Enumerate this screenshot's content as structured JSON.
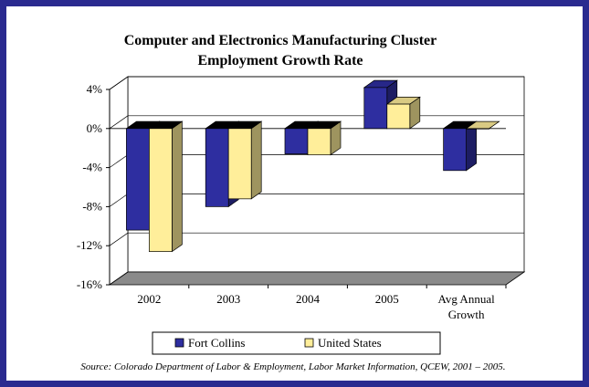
{
  "chart_data": {
    "type": "bar",
    "title_lines": [
      "Computer and Electronics Manufacturing Cluster",
      "Employment Growth Rate"
    ],
    "categories": [
      "2002",
      "2003",
      "2004",
      "2005",
      "Avg Annual Growth"
    ],
    "category_label_lines": [
      [
        "2002"
      ],
      [
        "2003"
      ],
      [
        "2004"
      ],
      [
        "2005"
      ],
      [
        "Avg Annual",
        "Growth"
      ]
    ],
    "series": [
      {
        "name": "Fort Collins",
        "values": [
          -10.4,
          -8.0,
          -2.6,
          4.2,
          -4.3
        ],
        "color": "#2e2ea0"
      },
      {
        "name": "United States",
        "values": [
          -12.6,
          -7.2,
          -2.7,
          2.5,
          0.0
        ],
        "color": "#ffee9a"
      }
    ],
    "ylim": [
      -16,
      4
    ],
    "yticks": [
      4,
      0,
      -4,
      -8,
      -12,
      -16
    ],
    "ytick_labels": [
      "4%",
      "0%",
      "-4%",
      "-8%",
      "-12%",
      "-16%"
    ],
    "grid": true,
    "legend": {
      "position": "bottom"
    },
    "source": "Source: Colorado Department of Labor & Employment, Labor Market Information, QCEW, 2001 – 2005."
  }
}
